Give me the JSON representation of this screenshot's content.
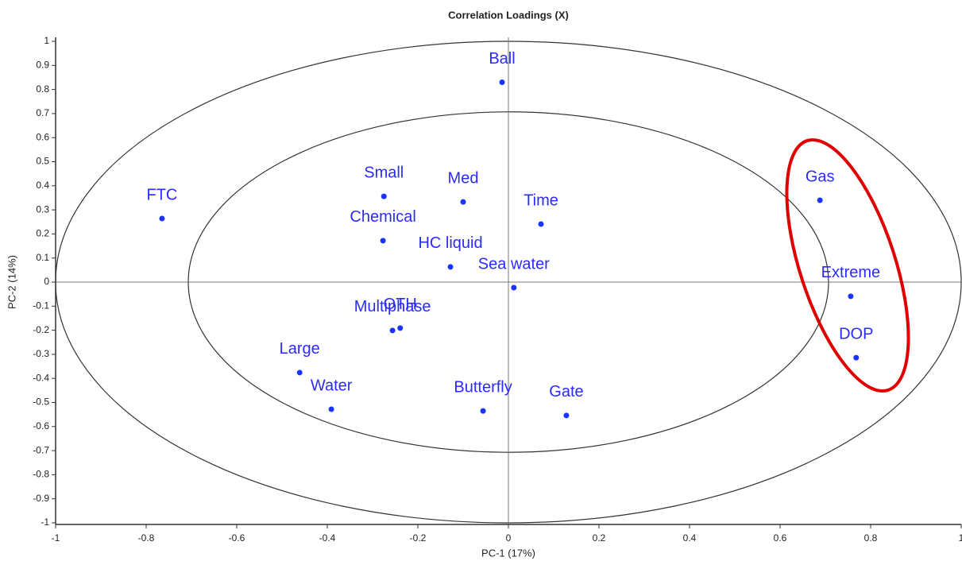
{
  "chart_data": {
    "type": "scatter",
    "title": "Correlation Loadings (X)",
    "x_label": "PC-1 (17%)",
    "y_label": "PC-2 (14%)",
    "labels": [
      "Ball",
      "FTC",
      "Small",
      "Med",
      "Time",
      "Chemical",
      "HC liquid",
      "Sea water",
      "Gas",
      "Extreme",
      "DOP",
      "OTH",
      "Multiphase",
      "Large",
      "Water",
      "Butterfly",
      "Gate"
    ],
    "x": [
      -0.014,
      -0.765,
      -0.275,
      -0.1,
      0.072,
      -0.277,
      -0.128,
      0.012,
      0.688,
      0.756,
      0.768,
      -0.239,
      -0.256,
      -0.461,
      -0.391,
      -0.056,
      0.128
    ],
    "values": [
      0.83,
      0.264,
      0.356,
      0.333,
      0.241,
      0.172,
      0.063,
      -0.023,
      0.34,
      -0.059,
      -0.314,
      -0.191,
      -0.201,
      -0.376,
      -0.528,
      -0.535,
      -0.554
    ],
    "color": "#1a33ff",
    "ellipse_radii": [
      1,
      0.707
    ],
    "xlim": [
      -1,
      1
    ],
    "ylim": [
      -1,
      1
    ],
    "xticks": [
      -1,
      -0.8,
      -0.6,
      -0.4,
      -0.2,
      0,
      0.2,
      0.4,
      0.6,
      0.8,
      1
    ],
    "yticks": [
      -1,
      -0.9,
      -0.8,
      -0.7,
      -0.6,
      -0.5,
      -0.4,
      -0.3,
      -0.2,
      -0.1,
      0,
      0.1,
      0.2,
      0.3,
      0.4,
      0.5,
      0.6,
      0.7,
      0.8,
      0.9,
      1
    ]
  }
}
